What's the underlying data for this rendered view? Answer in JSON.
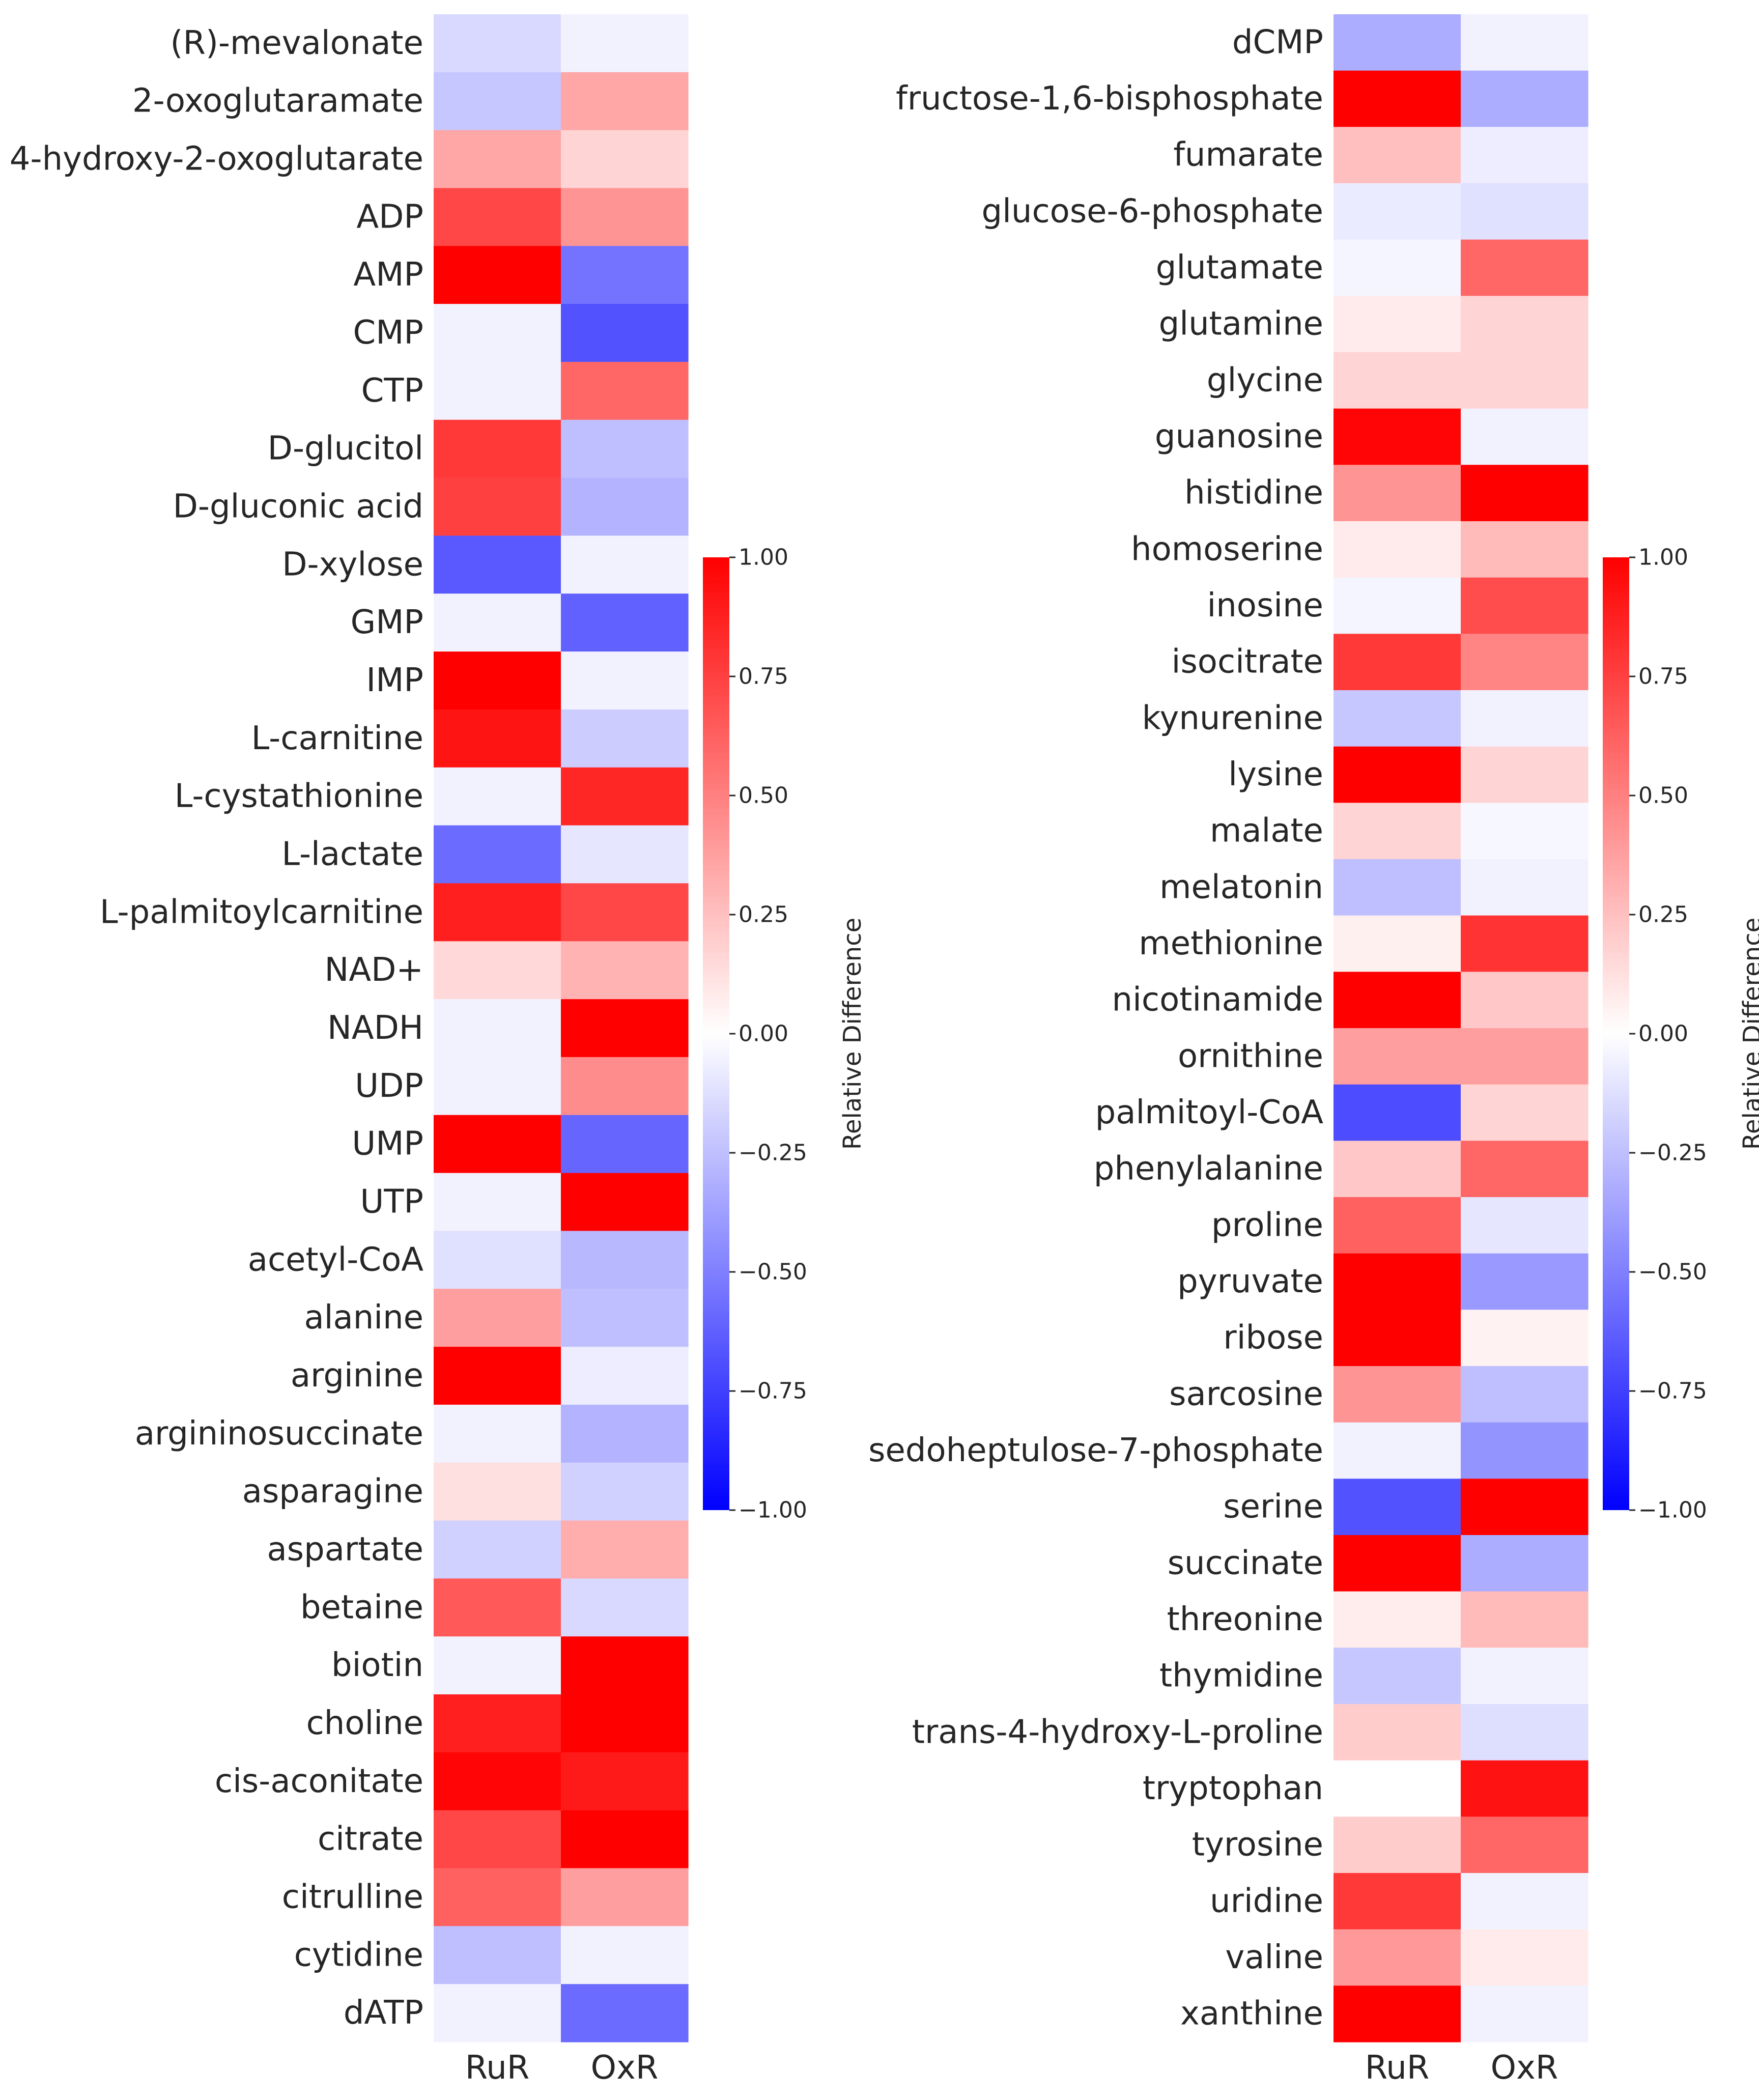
{
  "chart_data": [
    {
      "type": "heatmap",
      "columns": [
        "RuR",
        "OxR"
      ],
      "rows": [
        "(R)-mevalonate",
        "2-oxoglutaramate",
        "4-hydroxy-2-oxoglutarate",
        "ADP",
        "AMP",
        "CMP",
        "CTP",
        "D-glucitol",
        "D-gluconic acid",
        "D-xylose",
        "GMP",
        "IMP",
        "L-carnitine",
        "L-cystathionine",
        "L-lactate",
        "L-palmitoylcarnitine",
        "NAD+",
        "NADH",
        "UDP",
        "UMP",
        "UTP",
        "acetyl-CoA",
        "alanine",
        "arginine",
        "argininosuccinate",
        "asparagine",
        "aspartate",
        "betaine",
        "biotin",
        "choline",
        "cis-aconitate",
        "citrate",
        "citrulline",
        "cytidine",
        "dATP"
      ],
      "values": [
        [
          -0.15,
          -0.05
        ],
        [
          -0.22,
          0.35
        ],
        [
          0.35,
          0.17
        ],
        [
          0.72,
          0.42
        ],
        [
          1.0,
          -0.55
        ],
        [
          -0.05,
          -0.68
        ],
        [
          -0.05,
          0.6
        ],
        [
          0.78,
          -0.25
        ],
        [
          0.75,
          -0.3
        ],
        [
          -0.65,
          -0.05
        ],
        [
          -0.05,
          -0.62
        ],
        [
          1.0,
          -0.05
        ],
        [
          0.92,
          -0.2
        ],
        [
          -0.05,
          0.85
        ],
        [
          -0.58,
          -0.1
        ],
        [
          0.88,
          0.72
        ],
        [
          0.15,
          0.3
        ],
        [
          -0.05,
          1.0
        ],
        [
          -0.05,
          0.45
        ],
        [
          1.0,
          -0.6
        ],
        [
          -0.05,
          1.0
        ],
        [
          -0.12,
          -0.28
        ],
        [
          0.38,
          -0.25
        ],
        [
          1.0,
          -0.07
        ],
        [
          -0.05,
          -0.3
        ],
        [
          0.12,
          -0.18
        ],
        [
          -0.18,
          0.32
        ],
        [
          0.65,
          -0.15
        ],
        [
          -0.05,
          1.0
        ],
        [
          0.88,
          1.0
        ],
        [
          0.98,
          0.9
        ],
        [
          0.72,
          1.0
        ],
        [
          0.62,
          0.38
        ],
        [
          -0.25,
          -0.05
        ],
        [
          -0.05,
          -0.58
        ]
      ],
      "colorbar": {
        "label": "Relative Difference",
        "vmin": -1.0,
        "vmax": 1.0,
        "ticks": [
          "1.00",
          "0.75",
          "0.50",
          "0.25",
          "0.00",
          "−0.25",
          "−0.50",
          "−0.75",
          "−1.00"
        ]
      },
      "colormap": "bwr"
    },
    {
      "type": "heatmap",
      "columns": [
        "RuR",
        "OxR"
      ],
      "rows": [
        "dCMP",
        "fructose-1,6-bisphosphate",
        "fumarate",
        "glucose-6-phosphate",
        "glutamate",
        "glutamine",
        "glycine",
        "guanosine",
        "histidine",
        "homoserine",
        "inosine",
        "isocitrate",
        "kynurenine",
        "lysine",
        "malate",
        "melatonin",
        "methionine",
        "nicotinamide",
        "ornithine",
        "palmitoyl-CoA",
        "phenylalanine",
        "proline",
        "pyruvate",
        "ribose",
        "sarcosine",
        "sedoheptulose-7-phosphate",
        "serine",
        "succinate",
        "threonine",
        "thymidine",
        "trans-4-hydroxy-L-proline",
        "tryptophan",
        "tyrosine",
        "uridine",
        "valine",
        "xanthine"
      ],
      "values": [
        [
          -0.32,
          -0.05
        ],
        [
          1.0,
          -0.32
        ],
        [
          0.25,
          -0.07
        ],
        [
          -0.08,
          -0.12
        ],
        [
          -0.04,
          0.6
        ],
        [
          0.08,
          0.17
        ],
        [
          0.17,
          0.17
        ],
        [
          0.98,
          -0.05
        ],
        [
          0.42,
          1.0
        ],
        [
          0.08,
          0.27
        ],
        [
          -0.04,
          0.7
        ],
        [
          0.78,
          0.48
        ],
        [
          -0.22,
          -0.05
        ],
        [
          1.0,
          0.17
        ],
        [
          0.17,
          -0.03
        ],
        [
          -0.25,
          -0.05
        ],
        [
          0.06,
          0.8
        ],
        [
          1.0,
          0.22
        ],
        [
          0.38,
          0.38
        ],
        [
          -0.7,
          0.17
        ],
        [
          0.22,
          0.6
        ],
        [
          0.62,
          -0.1
        ],
        [
          1.0,
          -0.4
        ],
        [
          1.0,
          0.05
        ],
        [
          0.42,
          -0.25
        ],
        [
          -0.05,
          -0.42
        ],
        [
          -0.68,
          1.0
        ],
        [
          1.0,
          -0.32
        ],
        [
          0.07,
          0.27
        ],
        [
          -0.22,
          -0.05
        ],
        [
          0.2,
          -0.13
        ],
        [
          0.0,
          0.93
        ],
        [
          0.2,
          0.6
        ],
        [
          0.78,
          -0.05
        ],
        [
          0.4,
          0.08
        ],
        [
          1.0,
          -0.05
        ]
      ],
      "colorbar": {
        "label": "Relative Difference",
        "vmin": -1.0,
        "vmax": 1.0,
        "ticks": [
          "1.00",
          "0.75",
          "0.50",
          "0.25",
          "0.00",
          "−0.25",
          "−0.50",
          "−0.75",
          "−1.00"
        ]
      },
      "colormap": "bwr"
    }
  ]
}
